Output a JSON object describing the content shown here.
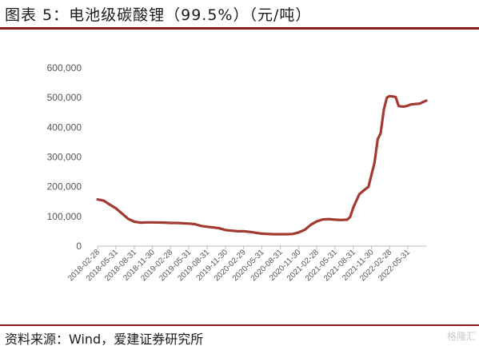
{
  "figure": {
    "title": "图表 5：电池级碳酸锂（99.5%）（元/吨）",
    "source": "资料来源：Wind，爱建证券研究所",
    "watermark": "格隆汇"
  },
  "colors": {
    "accent": "#8b1a1a",
    "line": "#a33a32",
    "axis": "#bbbbbb",
    "text": "#555555"
  },
  "chart_data": {
    "type": "line",
    "title": "",
    "xlabel": "",
    "ylabel": "",
    "ylim": [
      0,
      600000
    ],
    "yticks": [
      "0",
      "100,000",
      "200,000",
      "300,000",
      "400,000",
      "500,000",
      "600,000"
    ],
    "xlim": [
      "2018-02-28",
      "2022-08-31"
    ],
    "xticks": [
      "2018-02-28",
      "2018-05-31",
      "2018-08-31",
      "2018-11-30",
      "2019-02-28",
      "2019-05-31",
      "2019-08-31",
      "2019-11-30",
      "2020-02-29",
      "2020-05-31",
      "2020-08-31",
      "2020-11-30",
      "2021-02-28",
      "2021-05-31",
      "2021-08-31",
      "2021-11-30",
      "2022-02-28",
      "2022-05-31"
    ],
    "grid": false,
    "legend": "none",
    "series": [
      {
        "x": [
          "2018-02-28",
          "2018-03-31",
          "2018-04-30",
          "2018-05-31",
          "2018-06-30",
          "2018-07-31",
          "2018-08-31",
          "2018-09-30",
          "2018-10-31",
          "2018-11-30",
          "2019-01-31",
          "2019-02-28",
          "2019-03-31",
          "2019-05-31",
          "2019-06-30",
          "2019-07-31",
          "2019-08-31",
          "2019-09-30",
          "2019-10-31",
          "2019-11-30",
          "2019-12-31",
          "2020-01-31",
          "2020-02-29",
          "2020-03-31",
          "2020-04-30",
          "2020-05-31",
          "2020-06-30",
          "2020-07-31",
          "2020-08-31",
          "2020-09-30",
          "2020-10-31",
          "2020-11-30",
          "2020-12-31",
          "2021-01-31",
          "2021-02-28",
          "2021-03-31",
          "2021-04-30",
          "2021-05-31",
          "2021-06-30",
          "2021-07-31",
          "2021-08-15",
          "2021-08-31",
          "2021-09-30",
          "2021-10-31",
          "2021-11-15",
          "2021-11-30",
          "2021-12-15",
          "2021-12-31",
          "2022-01-15",
          "2022-01-31",
          "2022-02-15",
          "2022-02-28",
          "2022-03-15",
          "2022-03-31",
          "2022-04-15",
          "2022-04-30",
          "2022-05-15",
          "2022-05-31",
          "2022-06-15",
          "2022-06-30",
          "2022-07-15",
          "2022-07-31",
          "2022-08-15",
          "2022-08-31"
        ],
        "values": [
          157000,
          153000,
          140000,
          127000,
          110000,
          92000,
          82000,
          79000,
          80000,
          80000,
          79000,
          78000,
          78000,
          76000,
          74000,
          68000,
          65000,
          63000,
          60000,
          54000,
          52000,
          50000,
          50000,
          48000,
          45000,
          42000,
          41000,
          40000,
          40000,
          40000,
          41000,
          46000,
          55000,
          72000,
          83000,
          90000,
          91000,
          89000,
          88000,
          89000,
          98000,
          130000,
          175000,
          192000,
          200000,
          240000,
          280000,
          360000,
          380000,
          460000,
          500000,
          505000,
          504000,
          502000,
          472000,
          470000,
          470000,
          473000,
          477000,
          478000,
          479000,
          480000,
          485000,
          490000
        ]
      }
    ]
  }
}
